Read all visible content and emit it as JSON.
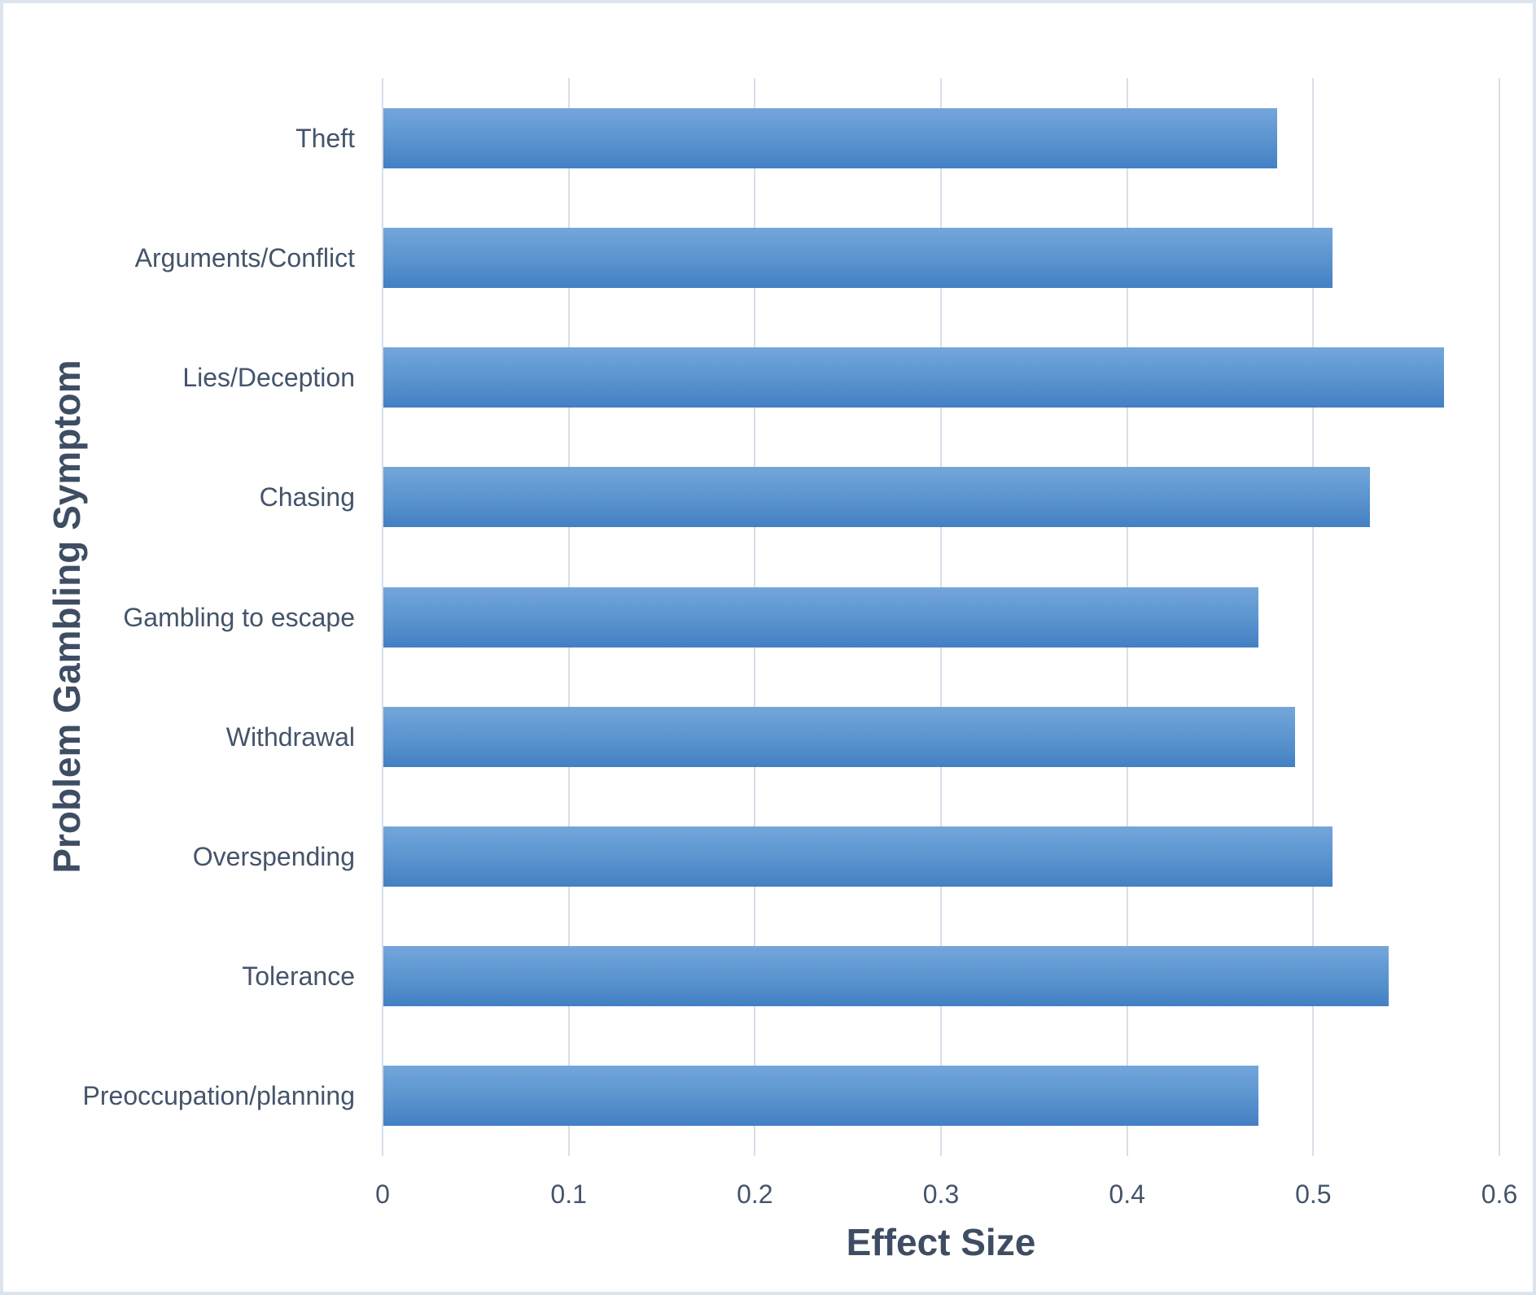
{
  "chart_data": {
    "type": "bar",
    "orientation": "horizontal",
    "title": "",
    "xlabel": "Effect Size",
    "ylabel": "Problem Gambling Symptom",
    "categories": [
      "Theft",
      "Arguments/Conflict",
      "Lies/Deception",
      "Chasing",
      "Gambling to escape",
      "Withdrawal",
      "Overspending",
      "Tolerance",
      "Preoccupation/planning"
    ],
    "values": [
      0.48,
      0.51,
      0.57,
      0.53,
      0.47,
      0.49,
      0.51,
      0.54,
      0.47
    ],
    "xlim": [
      0,
      0.6
    ],
    "xticks": [
      0,
      0.1,
      0.2,
      0.3,
      0.4,
      0.5,
      0.6
    ],
    "xtick_labels": [
      "0",
      "0.1",
      "0.2",
      "0.3",
      "0.4",
      "0.5",
      "0.6"
    ],
    "grid": "vertical-major-gridlines",
    "legend": "none",
    "colors": {
      "bar_gradient_top": "#74a6db",
      "bar_gradient_bottom": "#4380c3",
      "text": "#44546A",
      "gridline": "#d9dee8",
      "canvas_border": "#dce3ec",
      "background": "#ffffff"
    }
  }
}
